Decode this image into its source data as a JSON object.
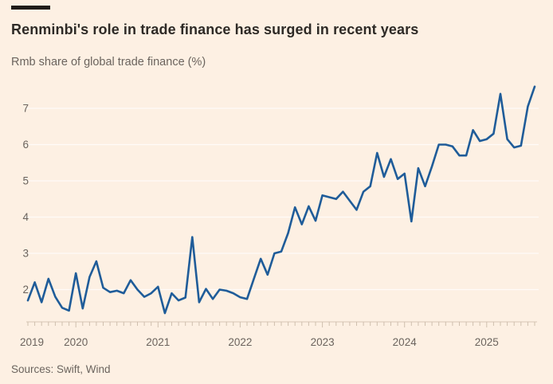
{
  "header": {
    "title": "Renminbi's role in trade finance has surged in recent years",
    "subtitle": "Rmb share of global trade finance (%)"
  },
  "footer": {
    "source": "Sources: Swift, Wind"
  },
  "colors": {
    "background": "#fdf0e3",
    "line": "#1f5c99",
    "title_text": "#2e2a26",
    "muted_text": "#6b645e",
    "gridline": "rgba(255,255,255,0.7)",
    "axis_baseline": "#d6c6b6",
    "tick": "#cfbfae",
    "top_bar": "#201c19"
  },
  "chart_data": {
    "type": "line",
    "title": "Renminbi's role in trade finance has surged in recent years",
    "subtitle": "Rmb share of global trade finance (%)",
    "source": "Sources: Swift, Wind",
    "xlabel": "",
    "ylabel": "Rmb share of global trade finance (%)",
    "frequency": "monthly",
    "start_month": "Jun 2019",
    "end_month": "Aug 2025",
    "values": [
      1.7,
      2.2,
      1.65,
      2.3,
      1.8,
      1.5,
      1.42,
      2.45,
      1.48,
      2.35,
      2.78,
      2.05,
      1.93,
      1.97,
      1.9,
      2.26,
      2.0,
      1.8,
      1.9,
      2.08,
      1.35,
      1.9,
      1.7,
      1.78,
      3.45,
      1.65,
      2.02,
      1.74,
      2.0,
      1.97,
      1.9,
      1.79,
      1.74,
      2.3,
      2.85,
      2.41,
      3.0,
      3.05,
      3.56,
      4.27,
      3.8,
      4.3,
      3.9,
      4.6,
      4.55,
      4.5,
      4.7,
      4.45,
      4.2,
      4.7,
      4.85,
      5.77,
      5.11,
      5.6,
      5.05,
      5.2,
      3.88,
      5.35,
      4.85,
      5.4,
      6.0,
      6.0,
      5.95,
      5.7,
      5.7,
      6.4,
      6.1,
      6.15,
      6.3,
      7.4,
      6.15,
      5.92,
      5.97,
      7.05,
      7.6
    ],
    "yticks": [
      2,
      3,
      4,
      5,
      6,
      7
    ],
    "ylim": [
      1.3,
      7.8
    ],
    "xticks": [
      "2019",
      "2020",
      "2021",
      "2022",
      "2023",
      "2024",
      "2025"
    ],
    "grid": "horizontal",
    "legend": "none"
  }
}
